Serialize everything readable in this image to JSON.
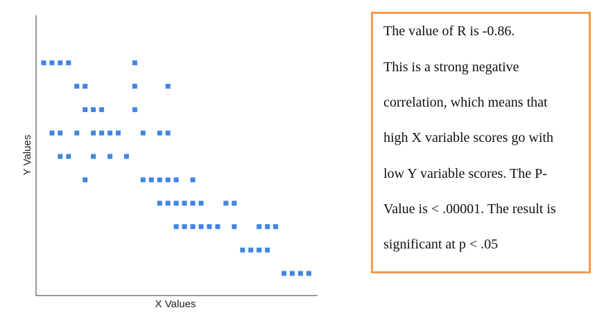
{
  "chart_data": {
    "type": "scatter",
    "xlabel": "X Values",
    "ylabel": "Y Values",
    "marker_color": "#3f86e4",
    "xlim": [
      0,
      34
    ],
    "ylim": [
      0,
      10
    ],
    "grid": false,
    "points": [
      {
        "x": 1,
        "y": 9
      },
      {
        "x": 2,
        "y": 9
      },
      {
        "x": 3,
        "y": 9
      },
      {
        "x": 4,
        "y": 9
      },
      {
        "x": 12,
        "y": 9
      },
      {
        "x": 5,
        "y": 8
      },
      {
        "x": 6,
        "y": 8
      },
      {
        "x": 12,
        "y": 8
      },
      {
        "x": 16,
        "y": 8
      },
      {
        "x": 6,
        "y": 7
      },
      {
        "x": 7,
        "y": 7
      },
      {
        "x": 8,
        "y": 7
      },
      {
        "x": 12,
        "y": 7
      },
      {
        "x": 2,
        "y": 6
      },
      {
        "x": 3,
        "y": 6
      },
      {
        "x": 5,
        "y": 6
      },
      {
        "x": 7,
        "y": 6
      },
      {
        "x": 8,
        "y": 6
      },
      {
        "x": 9,
        "y": 6
      },
      {
        "x": 10,
        "y": 6
      },
      {
        "x": 13,
        "y": 6
      },
      {
        "x": 15,
        "y": 6
      },
      {
        "x": 16,
        "y": 6
      },
      {
        "x": 3,
        "y": 5
      },
      {
        "x": 4,
        "y": 5
      },
      {
        "x": 7,
        "y": 5
      },
      {
        "x": 9,
        "y": 5
      },
      {
        "x": 11,
        "y": 5
      },
      {
        "x": 6,
        "y": 4
      },
      {
        "x": 13,
        "y": 4
      },
      {
        "x": 14,
        "y": 4
      },
      {
        "x": 15,
        "y": 4
      },
      {
        "x": 16,
        "y": 4
      },
      {
        "x": 17,
        "y": 4
      },
      {
        "x": 19,
        "y": 4
      },
      {
        "x": 15,
        "y": 3
      },
      {
        "x": 16,
        "y": 3
      },
      {
        "x": 17,
        "y": 3
      },
      {
        "x": 18,
        "y": 3
      },
      {
        "x": 19,
        "y": 3
      },
      {
        "x": 20,
        "y": 3
      },
      {
        "x": 23,
        "y": 3
      },
      {
        "x": 24,
        "y": 3
      },
      {
        "x": 17,
        "y": 2
      },
      {
        "x": 18,
        "y": 2
      },
      {
        "x": 19,
        "y": 2
      },
      {
        "x": 20,
        "y": 2
      },
      {
        "x": 21,
        "y": 2
      },
      {
        "x": 22,
        "y": 2
      },
      {
        "x": 24,
        "y": 2
      },
      {
        "x": 27,
        "y": 2
      },
      {
        "x": 28,
        "y": 2
      },
      {
        "x": 29,
        "y": 2
      },
      {
        "x": 25,
        "y": 1
      },
      {
        "x": 26,
        "y": 1
      },
      {
        "x": 27,
        "y": 1
      },
      {
        "x": 28,
        "y": 1
      },
      {
        "x": 30,
        "y": 0
      },
      {
        "x": 31,
        "y": 0
      },
      {
        "x": 32,
        "y": 0
      },
      {
        "x": 33,
        "y": 0
      }
    ]
  },
  "result_box": {
    "border_color": "#f29a4f",
    "lines": [
      "The value of R is -0.86.",
      "This is a strong negative",
      "correlation, which means that",
      "high X variable scores go with",
      "low Y variable scores. The P-",
      "Value is < .00001. The result is",
      "significant at p < .05"
    ]
  }
}
